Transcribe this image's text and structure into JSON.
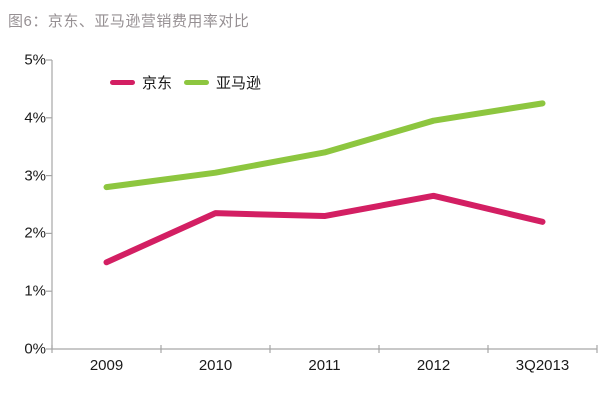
{
  "title": "图6：京东、亚马逊营销费用率对比",
  "colors": {
    "jd_line": "#d31f63",
    "amazon_line": "#8dc63f",
    "axis": "#a6a6a6",
    "label_text": "#1a1a1a",
    "title_text": "#969093"
  },
  "chart_data": {
    "type": "line",
    "title": "图6：京东、亚马逊营销费用率对比",
    "categories": [
      "2009",
      "2010",
      "2011",
      "2012",
      "3Q2013"
    ],
    "series": [
      {
        "name": "京东",
        "color": "#d31f63",
        "values": [
          1.5,
          2.35,
          2.3,
          2.65,
          2.2
        ]
      },
      {
        "name": "亚马逊",
        "color": "#8dc63f",
        "values": [
          2.8,
          3.05,
          3.4,
          3.95,
          4.25
        ]
      }
    ],
    "xlabel": "",
    "ylabel": "",
    "ylim": [
      0,
      5
    ],
    "yticks": [
      "0%",
      "1%",
      "2%",
      "3%",
      "4%",
      "5%"
    ],
    "ytick_values": [
      0,
      1,
      2,
      3,
      4,
      5
    ],
    "grid": false,
    "legend_position": "top-left-inside",
    "line_width": 6
  }
}
